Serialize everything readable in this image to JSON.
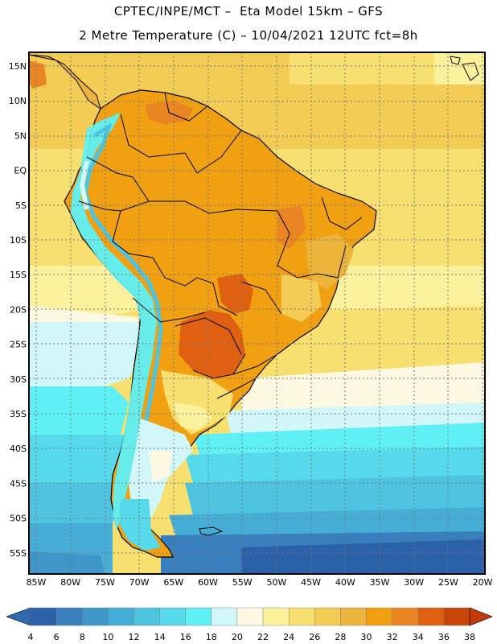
{
  "header": {
    "title_line1": "CPTEC/INPE/MCT –  Eta Model 15km – GFS",
    "title_line2": "2 Metre Temperature (C) – 10/04/2021 12UTC fct=8h"
  },
  "map": {
    "latitude_labels": [
      "15N",
      "10N",
      "5N",
      "EQ",
      "5S",
      "10S",
      "15S",
      "20S",
      "25S",
      "30S",
      "35S",
      "40S",
      "45S",
      "50S",
      "55S"
    ],
    "longitude_labels": [
      "85W",
      "80W",
      "75W",
      "70W",
      "65W",
      "60W",
      "55W",
      "50W",
      "45W",
      "40W",
      "35W",
      "30W",
      "25W",
      "20W"
    ]
  },
  "colorbar": {
    "ticks": [
      "4",
      "6",
      "8",
      "10",
      "12",
      "14",
      "16",
      "18",
      "20",
      "22",
      "24",
      "26",
      "28",
      "30",
      "32",
      "34",
      "36",
      "38"
    ],
    "colors": [
      "#2a61a8",
      "#3a7fbd",
      "#3f97c9",
      "#46aed6",
      "#4fc4e0",
      "#56d9ea",
      "#5ff0f6",
      "#d2f7fb",
      "#fdf8e1",
      "#fbf19c",
      "#f8e070",
      "#f3cc55",
      "#ecb43b",
      "#f0a010",
      "#e98522",
      "#de6010",
      "#c8450a"
    ],
    "low_color": "#2f6ab0",
    "high_color": "#c23a08"
  }
}
